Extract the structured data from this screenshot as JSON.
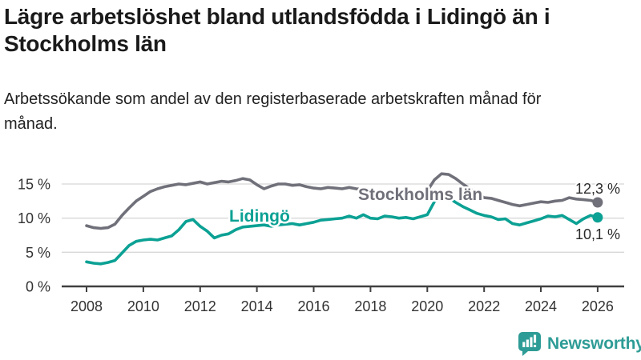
{
  "chart_data": {
    "type": "line",
    "title": "Lägre arbetslöshet bland utlandsfödda i Lidingö än i Stockholms län",
    "subtitle": "Arbetssökande som andel av den registerbaserade arbetskraften månad för månad.",
    "grid": "horizontal",
    "legend_position": "inline-labels-on-lines",
    "x_axis": {
      "tick_years": [
        2008,
        2010,
        2012,
        2014,
        2016,
        2018,
        2020,
        2022,
        2024,
        2026
      ],
      "tick_labels": [
        "2008",
        "2010",
        "2012",
        "2014",
        "2016",
        "2018",
        "2020",
        "2022",
        "2024",
        "2026"
      ],
      "range": [
        2008,
        2026
      ]
    },
    "y_axis": {
      "unit": "%",
      "grid_values": [
        5,
        10,
        15
      ],
      "ticks": [
        {
          "value": 0,
          "label": "0 %"
        },
        {
          "value": 5,
          "label": "5 %"
        },
        {
          "value": 10,
          "label": "10 %"
        },
        {
          "value": 15,
          "label": "15 %"
        }
      ],
      "ylim": [
        0,
        17.5
      ]
    },
    "series": [
      {
        "name": "Stockholms län",
        "color": "#70707A",
        "end_value": 12.3,
        "end_value_label": "12,3 %",
        "x_start": 2008,
        "x_step": 0.25,
        "values": [
          8.9,
          8.6,
          8.5,
          8.6,
          9.1,
          10.4,
          11.5,
          12.5,
          13.2,
          13.9,
          14.3,
          14.6,
          14.8,
          15.0,
          14.9,
          15.1,
          15.3,
          15.0,
          15.2,
          15.4,
          15.3,
          15.5,
          15.8,
          15.6,
          14.9,
          14.3,
          14.7,
          15.0,
          15.0,
          14.8,
          14.9,
          14.6,
          14.4,
          14.3,
          14.5,
          14.4,
          14.3,
          14.5,
          14.3,
          14.2,
          14.0,
          13.8,
          13.7,
          13.6,
          13.5,
          13.4,
          13.4,
          13.6,
          14.0,
          15.6,
          16.5,
          16.4,
          15.8,
          15.0,
          14.3,
          13.6,
          13.0,
          12.9,
          12.6,
          12.3,
          12.0,
          11.8,
          12.0,
          12.2,
          12.4,
          12.3,
          12.5,
          12.6,
          13.0,
          12.8,
          12.7,
          12.6,
          12.3
        ]
      },
      {
        "name": "Lidingö",
        "color": "#0BA194",
        "end_value": 10.1,
        "end_value_label": "10,1 %",
        "x_start": 2008,
        "x_step": 0.25,
        "values": [
          3.6,
          3.4,
          3.3,
          3.5,
          3.8,
          4.9,
          6.0,
          6.6,
          6.8,
          6.9,
          6.8,
          7.1,
          7.4,
          8.3,
          9.5,
          9.8,
          8.8,
          8.1,
          7.1,
          7.5,
          7.7,
          8.3,
          8.7,
          8.8,
          8.9,
          9.0,
          8.8,
          9.0,
          9.1,
          9.2,
          9.0,
          9.2,
          9.4,
          9.7,
          9.8,
          9.9,
          10.0,
          10.3,
          10.0,
          10.5,
          10.0,
          9.9,
          10.3,
          10.2,
          10.0,
          10.1,
          9.9,
          10.2,
          10.5,
          12.4,
          13.2,
          13.0,
          12.3,
          11.7,
          11.2,
          10.7,
          10.4,
          10.2,
          9.8,
          9.9,
          9.2,
          9.0,
          9.3,
          9.6,
          9.9,
          10.3,
          10.2,
          10.4,
          9.8,
          9.2,
          9.9,
          10.4,
          10.1
        ]
      }
    ]
  },
  "logo": {
    "text": "Newsworthy",
    "color": "#2E9C96",
    "icon": "bar-chart-speech-bubble-icon"
  }
}
